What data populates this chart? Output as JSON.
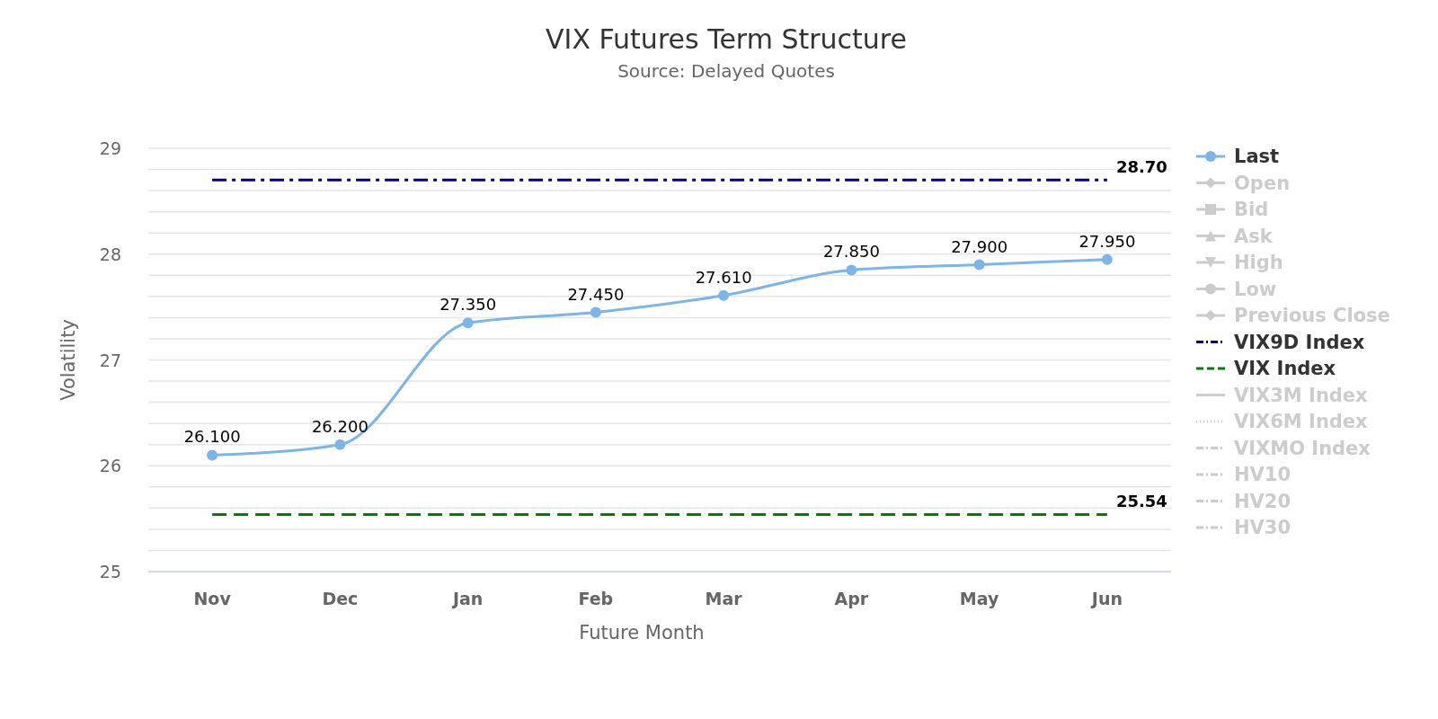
{
  "chart_data": {
    "type": "line",
    "title": "VIX Futures Term Structure",
    "subtitle": "Source: Delayed Quotes",
    "xlabel": "Future Month",
    "ylabel": "Volatility",
    "categories": [
      "Nov",
      "Dec",
      "Jan",
      "Feb",
      "Mar",
      "Apr",
      "May",
      "Jun"
    ],
    "ylim": [
      25,
      29
    ],
    "yticks": [
      25,
      {
        "value": 25.2,
        "label": null
      },
      {
        "value": 25.4,
        "label": null
      },
      {
        "value": 25.6,
        "label": null
      },
      {
        "value": 25.8,
        "label": null
      },
      26,
      {
        "value": 26.2,
        "label": null
      },
      {
        "value": 26.4,
        "label": null
      },
      {
        "value": 26.6,
        "label": null
      },
      {
        "value": 26.8,
        "label": null
      },
      27,
      {
        "value": 27.2,
        "label": null
      },
      {
        "value": 27.4,
        "label": null
      },
      {
        "value": 27.6,
        "label": null
      },
      {
        "value": 27.8,
        "label": null
      },
      28,
      {
        "value": 28.2,
        "label": null
      },
      {
        "value": 28.4,
        "label": null
      },
      {
        "value": 28.6,
        "label": null
      },
      {
        "value": 28.8,
        "label": null
      },
      29
    ],
    "grid": "y",
    "legend": "right",
    "marker": "circle",
    "series": [
      {
        "name": "Last",
        "color": "#7cb5ec",
        "values": [
          26.1,
          26.2,
          27.35,
          27.45,
          27.61,
          27.85,
          27.9,
          27.95
        ],
        "value_labels": [
          "26.100",
          "26.200",
          "27.350",
          "27.450",
          "27.610",
          "27.850",
          "27.900",
          "27.950"
        ]
      },
      {
        "name": "Open",
        "color": "#cccccc",
        "marker": "diamond",
        "values": [
          null,
          null,
          null,
          null,
          null,
          null,
          null,
          null
        ]
      },
      {
        "name": "Bid",
        "color": "#cccccc",
        "marker": "square",
        "values": [
          null,
          null,
          null,
          null,
          null,
          null,
          null,
          null
        ]
      },
      {
        "name": "Ask",
        "color": "#cccccc",
        "marker": "triangle",
        "values": [
          null,
          null,
          null,
          null,
          null,
          null,
          null,
          null
        ]
      },
      {
        "name": "High",
        "color": "#cccccc",
        "marker": "triangle-down",
        "values": [
          null,
          null,
          null,
          null,
          null,
          null,
          null,
          null
        ]
      },
      {
        "name": "Low",
        "color": "#cccccc",
        "marker": "circle",
        "values": [
          null,
          null,
          null,
          null,
          null,
          null,
          null,
          null
        ]
      },
      {
        "name": "Previous Close",
        "color": "#cccccc",
        "marker": "diamond",
        "values": [
          null,
          null,
          null,
          null,
          null,
          null,
          null,
          null
        ]
      },
      {
        "name": "VIX9D Index",
        "color": "#000080",
        "marker": "none",
        "line_style": "dashdot",
        "values": [
          28.7,
          28.7,
          28.7,
          28.7,
          28.7,
          28.7,
          28.7,
          28.7
        ],
        "value_labels": [
          null,
          null,
          null,
          null,
          null,
          null,
          null,
          "28.70"
        ]
      },
      {
        "name": "VIX Index",
        "color": "#008000",
        "marker": "none",
        "line_style": "dashed",
        "values": [
          25.54,
          25.54,
          25.54,
          25.54,
          25.54,
          25.54,
          25.54,
          25.54
        ],
        "value_labels": [
          null,
          null,
          null,
          null,
          null,
          null,
          null,
          "25.54"
        ]
      },
      {
        "name": "VIX3M Index",
        "color": "#cccccc",
        "marker": "none",
        "line_style": "solid",
        "values": [
          null,
          null,
          null,
          null,
          null,
          null,
          null,
          null
        ]
      },
      {
        "name": "VIX6M Index",
        "color": "#cccccc",
        "marker": "none",
        "line_style": "dotted",
        "values": [
          null,
          null,
          null,
          null,
          null,
          null,
          null,
          null
        ]
      },
      {
        "name": "VIXMO Index",
        "color": "#cccccc",
        "marker": "none",
        "line_style": "dashdot",
        "values": [
          null,
          null,
          null,
          null,
          null,
          null,
          null,
          null
        ]
      },
      {
        "name": "HV10",
        "color": "#cccccc",
        "marker": "none",
        "line_style": "dashdot",
        "values": [
          null,
          null,
          null,
          null,
          null,
          null,
          null,
          null
        ]
      },
      {
        "name": "HV20",
        "color": "#cccccc",
        "marker": "none",
        "line_style": "dashdot",
        "values": [
          null,
          null,
          null,
          null,
          null,
          null,
          null,
          null
        ]
      },
      {
        "name": "HV30",
        "color": "#cccccc",
        "marker": "none",
        "line_style": "dashdot",
        "values": [
          null,
          null,
          null,
          null,
          null,
          null,
          null,
          null
        ]
      }
    ]
  }
}
